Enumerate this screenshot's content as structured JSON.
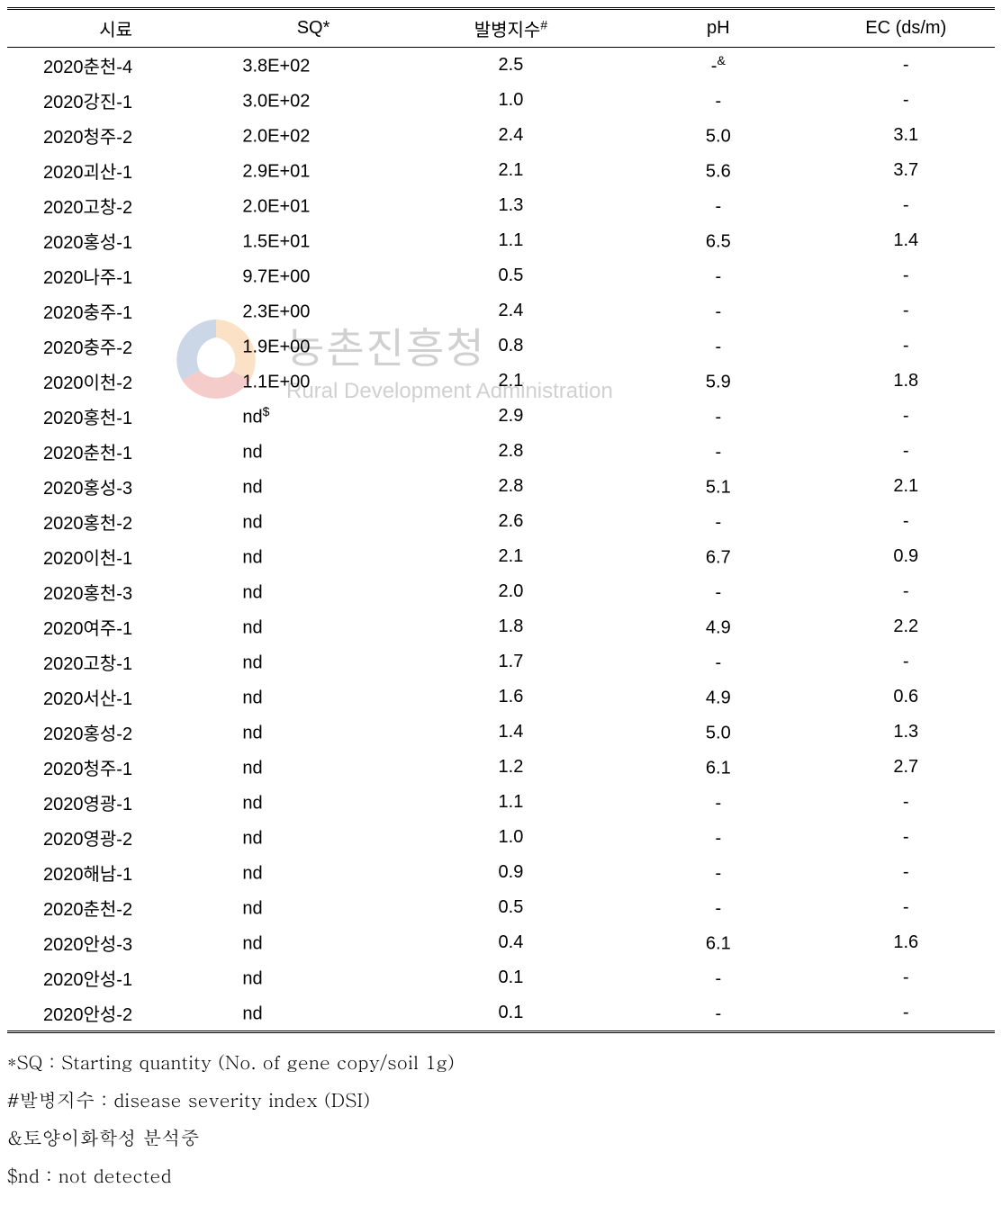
{
  "watermark": {
    "korean": "농촌진흥청",
    "english": "Rural Development Administration",
    "logo_colors": {
      "blue": "#2e5c9e",
      "red": "#d4312a",
      "orange": "#f08a1f"
    }
  },
  "table": {
    "headers": {
      "sample": "시료",
      "sq": "SQ*",
      "dsi": "발병지수",
      "dsi_sup": "#",
      "ph": "pH",
      "ec": "EC (ds/m)"
    },
    "rows": [
      {
        "sample": "2020춘천-4",
        "sq": "3.8E+02",
        "sq_sup": "",
        "dsi": "2.5",
        "ph": "-",
        "ph_sup": "&",
        "ec": "-"
      },
      {
        "sample": "2020강진-1",
        "sq": "3.0E+02",
        "sq_sup": "",
        "dsi": "1.0",
        "ph": "-",
        "ph_sup": "",
        "ec": "-"
      },
      {
        "sample": "2020청주-2",
        "sq": "2.0E+02",
        "sq_sup": "",
        "dsi": "2.4",
        "ph": "5.0",
        "ph_sup": "",
        "ec": "3.1"
      },
      {
        "sample": "2020괴산-1",
        "sq": "2.9E+01",
        "sq_sup": "",
        "dsi": "2.1",
        "ph": "5.6",
        "ph_sup": "",
        "ec": "3.7"
      },
      {
        "sample": "2020고창-2",
        "sq": "2.0E+01",
        "sq_sup": "",
        "dsi": "1.3",
        "ph": "-",
        "ph_sup": "",
        "ec": "-"
      },
      {
        "sample": "2020홍성-1",
        "sq": "1.5E+01",
        "sq_sup": "",
        "dsi": "1.1",
        "ph": "6.5",
        "ph_sup": "",
        "ec": "1.4"
      },
      {
        "sample": "2020나주-1",
        "sq": "9.7E+00",
        "sq_sup": "",
        "dsi": "0.5",
        "ph": "-",
        "ph_sup": "",
        "ec": "-"
      },
      {
        "sample": "2020충주-1",
        "sq": "2.3E+00",
        "sq_sup": "",
        "dsi": "2.4",
        "ph": "-",
        "ph_sup": "",
        "ec": "-"
      },
      {
        "sample": "2020충주-2",
        "sq": "1.9E+00",
        "sq_sup": "",
        "dsi": "0.8",
        "ph": "-",
        "ph_sup": "",
        "ec": "-"
      },
      {
        "sample": "2020이천-2",
        "sq": "1.1E+00",
        "sq_sup": "",
        "dsi": "2.1",
        "ph": "5.9",
        "ph_sup": "",
        "ec": "1.8"
      },
      {
        "sample": "2020홍천-1",
        "sq": "nd",
        "sq_sup": "$",
        "dsi": "2.9",
        "ph": "-",
        "ph_sup": "",
        "ec": "-"
      },
      {
        "sample": "2020춘천-1",
        "sq": "nd",
        "sq_sup": "",
        "dsi": "2.8",
        "ph": "-",
        "ph_sup": "",
        "ec": "-"
      },
      {
        "sample": "2020홍성-3",
        "sq": "nd",
        "sq_sup": "",
        "dsi": "2.8",
        "ph": "5.1",
        "ph_sup": "",
        "ec": "2.1"
      },
      {
        "sample": "2020홍천-2",
        "sq": "nd",
        "sq_sup": "",
        "dsi": "2.6",
        "ph": "-",
        "ph_sup": "",
        "ec": "-"
      },
      {
        "sample": "2020이천-1",
        "sq": "nd",
        "sq_sup": "",
        "dsi": "2.1",
        "ph": "6.7",
        "ph_sup": "",
        "ec": "0.9"
      },
      {
        "sample": "2020홍천-3",
        "sq": "nd",
        "sq_sup": "",
        "dsi": "2.0",
        "ph": "-",
        "ph_sup": "",
        "ec": "-"
      },
      {
        "sample": "2020여주-1",
        "sq": "nd",
        "sq_sup": "",
        "dsi": "1.8",
        "ph": "4.9",
        "ph_sup": "",
        "ec": "2.2"
      },
      {
        "sample": "2020고창-1",
        "sq": "nd",
        "sq_sup": "",
        "dsi": "1.7",
        "ph": "-",
        "ph_sup": "",
        "ec": "-"
      },
      {
        "sample": "2020서산-1",
        "sq": "nd",
        "sq_sup": "",
        "dsi": "1.6",
        "ph": "4.9",
        "ph_sup": "",
        "ec": "0.6"
      },
      {
        "sample": "2020홍성-2",
        "sq": "nd",
        "sq_sup": "",
        "dsi": "1.4",
        "ph": "5.0",
        "ph_sup": "",
        "ec": "1.3"
      },
      {
        "sample": "2020청주-1",
        "sq": "nd",
        "sq_sup": "",
        "dsi": "1.2",
        "ph": "6.1",
        "ph_sup": "",
        "ec": "2.7"
      },
      {
        "sample": "2020영광-1",
        "sq": "nd",
        "sq_sup": "",
        "dsi": "1.1",
        "ph": "-",
        "ph_sup": "",
        "ec": "-"
      },
      {
        "sample": "2020영광-2",
        "sq": "nd",
        "sq_sup": "",
        "dsi": "1.0",
        "ph": "-",
        "ph_sup": "",
        "ec": "-"
      },
      {
        "sample": "2020해남-1",
        "sq": "nd",
        "sq_sup": "",
        "dsi": "0.9",
        "ph": "-",
        "ph_sup": "",
        "ec": "-"
      },
      {
        "sample": "2020춘천-2",
        "sq": "nd",
        "sq_sup": "",
        "dsi": "0.5",
        "ph": "-",
        "ph_sup": "",
        "ec": "-"
      },
      {
        "sample": "2020안성-3",
        "sq": "nd",
        "sq_sup": "",
        "dsi": "0.4",
        "ph": "6.1",
        "ph_sup": "",
        "ec": "1.6"
      },
      {
        "sample": "2020안성-1",
        "sq": "nd",
        "sq_sup": "",
        "dsi": "0.1",
        "ph": "-",
        "ph_sup": "",
        "ec": "-"
      },
      {
        "sample": "2020안성-2",
        "sq": "nd",
        "sq_sup": "",
        "dsi": "0.1",
        "ph": "-",
        "ph_sup": "",
        "ec": "-"
      }
    ]
  },
  "footnotes": {
    "note1": "*SQ : Starting quantity (No. of gene copy/soil 1g)",
    "note2": "#발병지수 : disease severity index (DSI)",
    "note3": "&토양이화학성 분석중",
    "note4": "$nd : not detected"
  }
}
